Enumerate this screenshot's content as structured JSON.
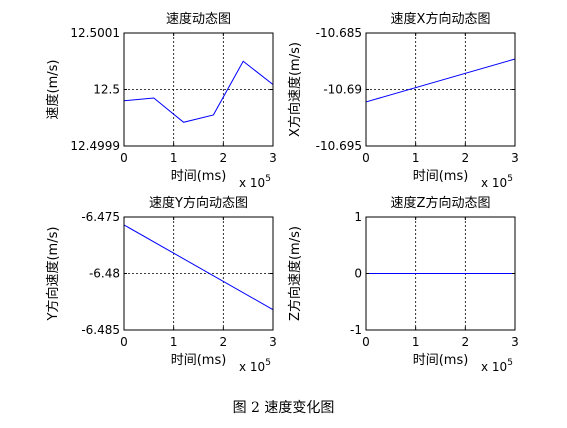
{
  "figure": {
    "caption": "图 2  速度变化图"
  },
  "chart_data": [
    {
      "type": "line",
      "title": "速度动态图",
      "xlabel": "时间(ms)",
      "ylabel": "速度(m/s)",
      "x_exponent_label": "x 10",
      "x_exponent_power": "5",
      "xlim": [
        0,
        3
      ],
      "ylim": [
        12.4999,
        12.5001
      ],
      "x_ticks": [
        0,
        1,
        2,
        3
      ],
      "x_tick_labels": [
        "0",
        "1",
        "2",
        "3"
      ],
      "y_ticks": [
        12.4999,
        12.5,
        12.5001
      ],
      "y_tick_labels": [
        "12.4999",
        "12.5",
        "12.5001"
      ],
      "grid": true,
      "line_color": "#0000ff",
      "series": [
        {
          "x": [
            0,
            0.6,
            1.2,
            1.8,
            2.4,
            3.0
          ],
          "y": [
            12.49998,
            12.499985,
            12.499942,
            12.499955,
            12.50005,
            12.5000088
          ]
        }
      ]
    },
    {
      "type": "line",
      "title": "速度X方向动态图",
      "xlabel": "时间(ms)",
      "ylabel": "X方向速度(m/s)",
      "x_exponent_label": "x 10",
      "x_exponent_power": "5",
      "xlim": [
        0,
        3
      ],
      "ylim": [
        -10.695,
        -10.685
      ],
      "x_ticks": [
        0,
        1,
        2,
        3
      ],
      "x_tick_labels": [
        "0",
        "1",
        "2",
        "3"
      ],
      "y_ticks": [
        -10.695,
        -10.69,
        -10.685
      ],
      "y_tick_labels": [
        "-10.695",
        "-10.69",
        "-10.685"
      ],
      "grid": true,
      "line_color": "#0000ff",
      "series": [
        {
          "x": [
            0,
            3
          ],
          "y": [
            -10.6911,
            -10.6873
          ]
        }
      ]
    },
    {
      "type": "line",
      "title": "速度Y方向动态图",
      "xlabel": "时间(ms)",
      "ylabel": "Y方向速度(m/s)",
      "x_exponent_label": "x 10",
      "x_exponent_power": "5",
      "xlim": [
        0,
        3
      ],
      "ylim": [
        -6.485,
        -6.475
      ],
      "x_ticks": [
        0,
        1,
        2,
        3
      ],
      "x_tick_labels": [
        "0",
        "1",
        "2",
        "3"
      ],
      "y_ticks": [
        -6.485,
        -6.48,
        -6.475
      ],
      "y_tick_labels": [
        "-6.485",
        "-6.48",
        "-6.475"
      ],
      "grid": true,
      "line_color": "#0000ff",
      "series": [
        {
          "x": [
            0,
            3
          ],
          "y": [
            -6.4757,
            -6.4832
          ]
        }
      ]
    },
    {
      "type": "line",
      "title": "速度Z方向动态图",
      "xlabel": "时间(ms)",
      "ylabel": "Z方向速度(m/s)",
      "x_exponent_label": "x 10",
      "x_exponent_power": "5",
      "xlim": [
        0,
        3
      ],
      "ylim": [
        -1,
        1
      ],
      "x_ticks": [
        0,
        1,
        2,
        3
      ],
      "x_tick_labels": [
        "0",
        "1",
        "2",
        "3"
      ],
      "y_ticks": [
        -1,
        0,
        1
      ],
      "y_tick_labels": [
        "-1",
        "0",
        "1"
      ],
      "grid": true,
      "line_color": "#0000ff",
      "series": [
        {
          "x": [
            0,
            3
          ],
          "y": [
            0,
            0
          ]
        }
      ]
    }
  ]
}
